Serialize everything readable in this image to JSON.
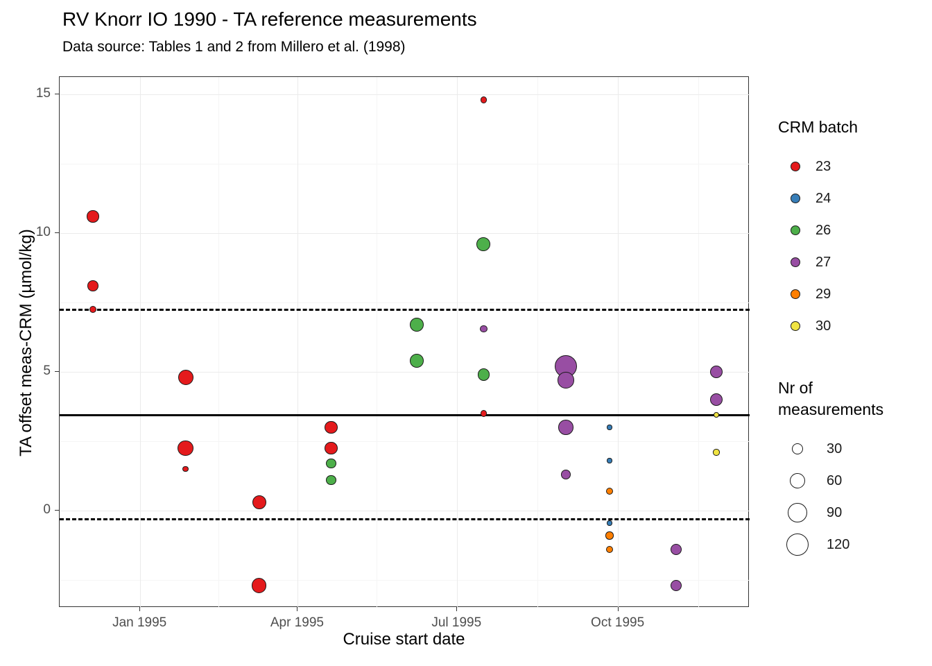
{
  "chart_data": {
    "type": "scatter",
    "title": "RV Knorr IO 1990 - TA reference measurements",
    "subtitle": "Data source: Tables 1 and 2 from Millero et al. (1998)",
    "xlabel": "Cruise start date",
    "ylabel": "TA offset meas-CRM (µmol/kg)",
    "x_domain": [
      "1994-11-16",
      "1995-12-15"
    ],
    "ylim": [
      -3.5,
      15.625
    ],
    "x_ticks": [
      {
        "label": "Jan 1995",
        "date": "1995-01-01"
      },
      {
        "label": "Apr 1995",
        "date": "1995-04-01"
      },
      {
        "label": "Jul 1995",
        "date": "1995-07-01"
      },
      {
        "label": "Oct 1995",
        "date": "1995-10-01"
      }
    ],
    "x_minor_ticks": [
      "1995-02-15",
      "1995-05-16",
      "1995-08-16",
      "1995-11-16"
    ],
    "y_ticks": [
      0,
      5,
      10,
      15
    ],
    "y_minor_ticks": [
      -2.5,
      2.5,
      7.5,
      12.5
    ],
    "grid": true,
    "reference_lines": {
      "solid": 3.45,
      "dashed": [
        7.25,
        -0.3
      ]
    },
    "color_legend": {
      "title": "CRM batch",
      "entries": [
        {
          "label": "23",
          "color": "#E41A1C"
        },
        {
          "label": "24",
          "color": "#377EB8"
        },
        {
          "label": "26",
          "color": "#4DAF4A"
        },
        {
          "label": "27",
          "color": "#984EA3"
        },
        {
          "label": "29",
          "color": "#FF7F00"
        },
        {
          "label": "30",
          "color": "#F0E442"
        }
      ]
    },
    "size_legend": {
      "title": "Nr of\nmeasurements",
      "entries": [
        30,
        60,
        90,
        120
      ],
      "radius_scale_k": 1.46
    },
    "points": [
      {
        "date": "1994-12-05",
        "y": 10.6,
        "batch": "23",
        "n": 35
      },
      {
        "date": "1994-12-05",
        "y": 8.1,
        "batch": "23",
        "n": 28
      },
      {
        "date": "1994-12-05",
        "y": 7.25,
        "batch": "23",
        "n": 14
      },
      {
        "date": "1995-01-27",
        "y": 4.8,
        "batch": "23",
        "n": 60
      },
      {
        "date": "1995-01-27",
        "y": 2.25,
        "batch": "23",
        "n": 62
      },
      {
        "date": "1995-01-27",
        "y": 1.5,
        "batch": "23",
        "n": 9
      },
      {
        "date": "1995-03-10",
        "y": 0.3,
        "batch": "23",
        "n": 50
      },
      {
        "date": "1995-03-10",
        "y": -2.7,
        "batch": "23",
        "n": 52
      },
      {
        "date": "1995-04-20",
        "y": 3.0,
        "batch": "23",
        "n": 42
      },
      {
        "date": "1995-04-20",
        "y": 2.25,
        "batch": "23",
        "n": 42
      },
      {
        "date": "1995-07-16",
        "y": 14.8,
        "batch": "23",
        "n": 10
      },
      {
        "date": "1995-07-16",
        "y": 3.5,
        "batch": "23",
        "n": 10
      },
      {
        "date": "1995-04-20",
        "y": 1.7,
        "batch": "26",
        "n": 24
      },
      {
        "date": "1995-04-20",
        "y": 1.1,
        "batch": "26",
        "n": 24
      },
      {
        "date": "1995-06-08",
        "y": 6.7,
        "batch": "26",
        "n": 46
      },
      {
        "date": "1995-06-08",
        "y": 5.4,
        "batch": "26",
        "n": 46
      },
      {
        "date": "1995-07-16",
        "y": 9.6,
        "batch": "26",
        "n": 46
      },
      {
        "date": "1995-07-16",
        "y": 4.9,
        "batch": "26",
        "n": 35
      },
      {
        "date": "1995-07-16",
        "y": 6.55,
        "batch": "27",
        "n": 14
      },
      {
        "date": "1995-09-01",
        "y": 5.2,
        "batch": "27",
        "n": 120
      },
      {
        "date": "1995-09-01",
        "y": 4.7,
        "batch": "27",
        "n": 65
      },
      {
        "date": "1995-09-01",
        "y": 3.0,
        "batch": "27",
        "n": 55
      },
      {
        "date": "1995-09-01",
        "y": 1.3,
        "batch": "27",
        "n": 22
      },
      {
        "date": "1995-11-03",
        "y": -1.4,
        "batch": "27",
        "n": 33
      },
      {
        "date": "1995-11-03",
        "y": -2.7,
        "batch": "27",
        "n": 33
      },
      {
        "date": "1995-11-26",
        "y": 5.0,
        "batch": "27",
        "n": 42
      },
      {
        "date": "1995-11-26",
        "y": 4.0,
        "batch": "27",
        "n": 38
      },
      {
        "date": "1995-09-26",
        "y": 3.0,
        "batch": "24",
        "n": 6
      },
      {
        "date": "1995-09-26",
        "y": 1.8,
        "batch": "24",
        "n": 6
      },
      {
        "date": "1995-09-26",
        "y": -0.45,
        "batch": "24",
        "n": 6
      },
      {
        "date": "1995-09-26",
        "y": 0.7,
        "batch": "29",
        "n": 13
      },
      {
        "date": "1995-09-26",
        "y": -0.9,
        "batch": "29",
        "n": 15
      },
      {
        "date": "1995-09-26",
        "y": -1.4,
        "batch": "29",
        "n": 13
      },
      {
        "date": "1995-11-26",
        "y": 3.45,
        "batch": "30",
        "n": 8
      },
      {
        "date": "1995-11-26",
        "y": 2.1,
        "batch": "30",
        "n": 10
      }
    ]
  }
}
